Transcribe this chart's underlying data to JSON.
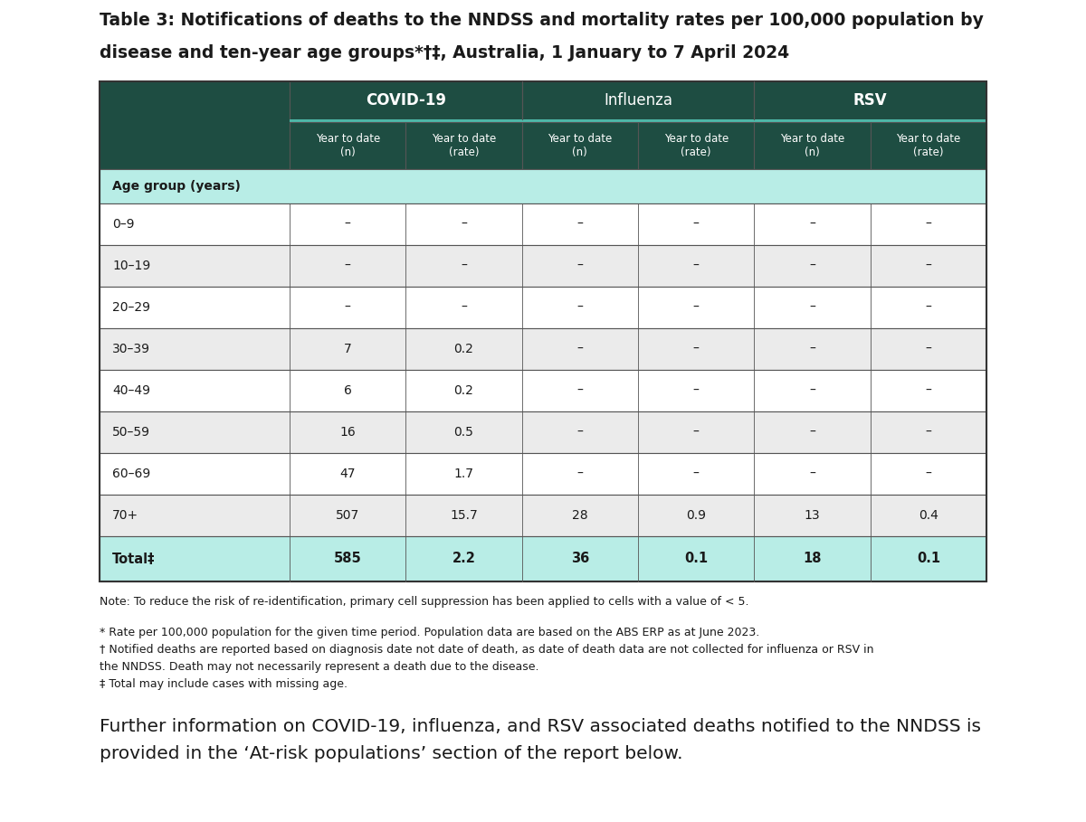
{
  "title_line1": "Table 3: Notifications of deaths to the NNDSS and mortality rates per 100,000 population by",
  "title_line2": "disease and ten-year age groups*†‡, Australia, 1 January to 7 April 2024",
  "col_groups": [
    "COVID-19",
    "Influenza",
    "RSV"
  ],
  "col_subheaders": [
    "Year to date\n(n)",
    "Year to date\n(rate)",
    "Year to date\n(n)",
    "Year to date\n(rate)",
    "Year to date\n(n)",
    "Year to date\n(rate)"
  ],
  "section_header": "Age group (years)",
  "age_groups": [
    "0–9",
    "10–19",
    "20–29",
    "30–39",
    "40–49",
    "50–59",
    "60–69",
    "70+"
  ],
  "data": {
    "0–9": [
      "–",
      "–",
      "–",
      "–",
      "–",
      "–"
    ],
    "10–19": [
      "–",
      "–",
      "–",
      "–",
      "–",
      "–"
    ],
    "20–29": [
      "–",
      "–",
      "–",
      "–",
      "–",
      "–"
    ],
    "30–39": [
      "7",
      "0.2",
      "–",
      "–",
      "–",
      "–"
    ],
    "40–49": [
      "6",
      "0.2",
      "–",
      "–",
      "–",
      "–"
    ],
    "50–59": [
      "16",
      "0.5",
      "–",
      "–",
      "–",
      "–"
    ],
    "60–69": [
      "47",
      "1.7",
      "–",
      "–",
      "–",
      "–"
    ],
    "70+": [
      "507",
      "15.7",
      "28",
      "0.9",
      "13",
      "0.4"
    ]
  },
  "total_row": [
    "585",
    "2.2",
    "36",
    "0.1",
    "18",
    "0.1"
  ],
  "total_label": "Total‡",
  "note_line1": "Note: To reduce the risk of re-identification, primary cell suppression has been applied to cells with a value of < 5.",
  "note_line2": "* Rate per 100,000 population for the given time period. Population data are based on the ABS ERP as at June 2023.",
  "note_line3": "† Notified deaths are reported based on diagnosis date not date of death, as date of death data are not collected for influenza or RSV in",
  "note_line3b": "the NNDSS. Death may not necessarily represent a death due to the disease.",
  "note_line4": "‡ Total may include cases with missing age.",
  "footer_line1": "Further information on COVID-19, influenza, and RSV associated deaths notified to the NNDSS is",
  "footer_line2": "provided in the ‘At-risk populations’ section of the report below.",
  "bg_color": "#ffffff",
  "header_dark_bg": "#1e4d42",
  "teal_line_color": "#4db8a8",
  "section_bg": "#b8ede6",
  "total_bg": "#b8ede6",
  "row_odd_bg": "#ffffff",
  "row_even_bg": "#ebebeb",
  "header_text_color": "#ffffff",
  "dark_text": "#1a1a1a",
  "border_color": "#555555",
  "outer_border": "#333333"
}
